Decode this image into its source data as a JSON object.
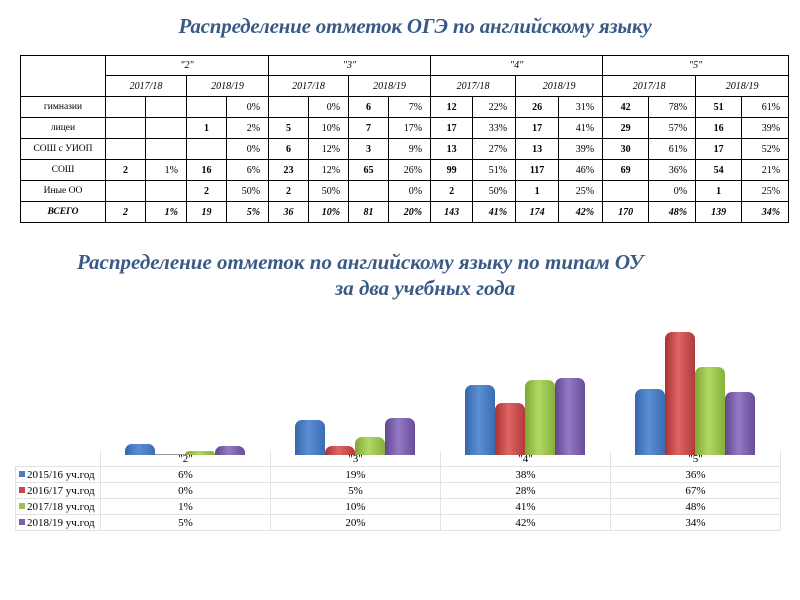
{
  "title": "Распределение отметок ОГЭ по английскому языку",
  "table": {
    "grades": [
      "\"2\"",
      "\"3\"",
      "\"4\"",
      "\"5\""
    ],
    "years": [
      "2017/18",
      "2018/19"
    ],
    "rows": [
      {
        "label": "гимназии",
        "cells": [
          "",
          "",
          "",
          "0%",
          "",
          "0%",
          "6",
          "7%",
          "12",
          "22%",
          "26",
          "31%",
          "42",
          "78%",
          "51",
          "61%"
        ]
      },
      {
        "label": "лицеи",
        "cells": [
          "",
          "",
          "1",
          "2%",
          "5",
          "10%",
          "7",
          "17%",
          "17",
          "33%",
          "17",
          "41%",
          "29",
          "57%",
          "16",
          "39%"
        ]
      },
      {
        "label": "СОШ с УИОП",
        "cells": [
          "",
          "",
          "",
          "0%",
          "6",
          "12%",
          "3",
          "9%",
          "13",
          "27%",
          "13",
          "39%",
          "30",
          "61%",
          "17",
          "52%"
        ]
      },
      {
        "label": "СОШ",
        "cells": [
          "2",
          "1%",
          "16",
          "6%",
          "23",
          "12%",
          "65",
          "26%",
          "99",
          "51%",
          "117",
          "46%",
          "69",
          "36%",
          "54",
          "21%"
        ]
      },
      {
        "label": "Иные ОО",
        "cells": [
          "",
          "",
          "2",
          "50%",
          "2",
          "50%",
          "",
          "0%",
          "2",
          "50%",
          "1",
          "25%",
          "",
          "0%",
          "1",
          "25%"
        ]
      },
      {
        "label": "ВСЕГО",
        "cells": [
          "2",
          "1%",
          "19",
          "5%",
          "36",
          "10%",
          "81",
          "20%",
          "143",
          "41%",
          "174",
          "42%",
          "170",
          "48%",
          "139",
          "34%"
        ]
      }
    ]
  },
  "subtitle": {
    "line1": "Распределение отметок по английскому языку по типам ОУ",
    "line2": "за два учебных года"
  },
  "chart_data": {
    "type": "bar",
    "title": "Распределение отметок по английскому языку по типам ОУ за два учебных года",
    "categories": [
      "\"2\"",
      "\"3\"",
      "\"4\"",
      "\"5\""
    ],
    "series": [
      {
        "name": "2015/16 уч.год",
        "color": "#4a7bc4",
        "values": [
          6,
          19,
          38,
          36
        ],
        "labels": [
          "6%",
          "19%",
          "38%",
          "36%"
        ]
      },
      {
        "name": "2016/17 уч.год",
        "color": "#c94848",
        "values": [
          0,
          5,
          28,
          67
        ],
        "labels": [
          "0%",
          "5%",
          "28%",
          "67%"
        ]
      },
      {
        "name": "2017/18 уч.год",
        "color": "#9bc24f",
        "values": [
          1,
          10,
          41,
          48
        ],
        "labels": [
          "1%",
          "10%",
          "41%",
          "48%"
        ]
      },
      {
        "name": "2018/19 уч.год",
        "color": "#7c60ab",
        "values": [
          5,
          20,
          42,
          34
        ],
        "labels": [
          "5%",
          "20%",
          "42%",
          "34%"
        ]
      }
    ],
    "xlabel": "",
    "ylabel": "",
    "unit": "%",
    "ylim": [
      0,
      70
    ],
    "grid": false,
    "legend_position": "data-table-left",
    "style": "3d-cylinder"
  }
}
